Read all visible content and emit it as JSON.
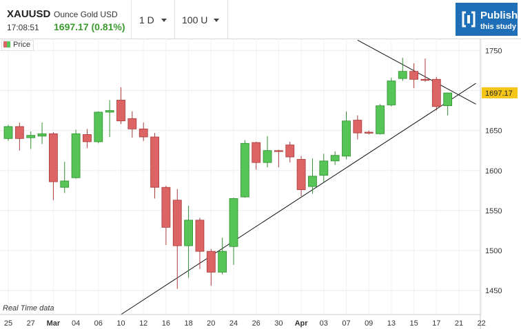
{
  "header": {
    "symbol": "XAUUSD",
    "description": "Ounce Gold USD",
    "time": "17:08:51",
    "price_change": "1697.17 (0.81%)",
    "interval_label": "1 D",
    "bars_label": "100 U",
    "publish_line1": "Publish",
    "publish_line2": "this study"
  },
  "legend_label": "Price",
  "footer_note": "Real Time data",
  "colors": {
    "up": "#56c456",
    "down": "#dc6464",
    "price_positive": "#3a9a2e",
    "publish_bg": "#1e6fb8",
    "last_price_label": "#f5c518"
  },
  "icons": {
    "publish": "bracket-book-icon",
    "dropdown": "caret-down-icon"
  },
  "chart_data": {
    "type": "candlestick",
    "y_ticks": [
      1450,
      1500,
      1550,
      1600,
      1650,
      1700,
      1750
    ],
    "y_tick_labels": [
      "1450",
      "1500",
      "1550",
      "1600",
      "1650",
      "1700",
      "1750"
    ],
    "ylim": [
      1420,
      1765
    ],
    "x_labels": [
      "25",
      "27",
      "Mar",
      "04",
      "06",
      "10",
      "12",
      "16",
      "18",
      "20",
      "24",
      "26",
      "30",
      "Apr",
      "03",
      "07",
      "09",
      "13",
      "15",
      "17",
      "21",
      "22"
    ],
    "last_price": "1697.17",
    "grid": true,
    "legend_position": "top-left",
    "candles": [
      {
        "o": 1640,
        "c": 1655,
        "h": 1657,
        "l": 1637
      },
      {
        "o": 1655,
        "c": 1640,
        "h": 1660,
        "l": 1625
      },
      {
        "o": 1641,
        "c": 1644,
        "h": 1649,
        "l": 1627
      },
      {
        "o": 1643,
        "c": 1646,
        "h": 1660,
        "l": 1633
      },
      {
        "o": 1646,
        "c": 1586,
        "h": 1648,
        "l": 1563
      },
      {
        "o": 1579,
        "c": 1587,
        "h": 1611,
        "l": 1572
      },
      {
        "o": 1591,
        "c": 1646,
        "h": 1651,
        "l": 1590
      },
      {
        "o": 1645,
        "c": 1636,
        "h": 1652,
        "l": 1628
      },
      {
        "o": 1636,
        "c": 1673,
        "h": 1674,
        "l": 1634
      },
      {
        "o": 1673,
        "c": 1675,
        "h": 1688,
        "l": 1642
      },
      {
        "o": 1688,
        "c": 1662,
        "h": 1704,
        "l": 1658
      },
      {
        "o": 1665,
        "c": 1652,
        "h": 1674,
        "l": 1641
      },
      {
        "o": 1652,
        "c": 1642,
        "h": 1660,
        "l": 1637
      },
      {
        "o": 1642,
        "c": 1579,
        "h": 1647,
        "l": 1565
      },
      {
        "o": 1579,
        "c": 1529,
        "h": 1581,
        "l": 1507
      },
      {
        "o": 1563,
        "c": 1506,
        "h": 1577,
        "l": 1452
      },
      {
        "o": 1506,
        "c": 1538,
        "h": 1556,
        "l": 1466
      },
      {
        "o": 1538,
        "c": 1499,
        "h": 1541,
        "l": 1477
      },
      {
        "o": 1499,
        "c": 1473,
        "h": 1502,
        "l": 1456
      },
      {
        "o": 1473,
        "c": 1499,
        "h": 1516,
        "l": 1470
      },
      {
        "o": 1505,
        "c": 1565,
        "h": 1566,
        "l": 1482
      },
      {
        "o": 1567,
        "c": 1634,
        "h": 1638,
        "l": 1566
      },
      {
        "o": 1635,
        "c": 1610,
        "h": 1636,
        "l": 1601
      },
      {
        "o": 1610,
        "c": 1625,
        "h": 1643,
        "l": 1604
      },
      {
        "o": 1625,
        "c": 1624,
        "h": 1626,
        "l": 1604
      },
      {
        "o": 1632,
        "c": 1617,
        "h": 1636,
        "l": 1610
      },
      {
        "o": 1614,
        "c": 1576,
        "h": 1618,
        "l": 1568
      },
      {
        "o": 1580,
        "c": 1593,
        "h": 1615,
        "l": 1571
      },
      {
        "o": 1594,
        "c": 1612,
        "h": 1621,
        "l": 1585
      },
      {
        "o": 1612,
        "c": 1619,
        "h": 1624,
        "l": 1607
      },
      {
        "o": 1618,
        "c": 1662,
        "h": 1674,
        "l": 1614
      },
      {
        "o": 1663,
        "c": 1647,
        "h": 1669,
        "l": 1639
      },
      {
        "o": 1648,
        "c": 1647,
        "h": 1650,
        "l": 1645
      },
      {
        "o": 1646,
        "c": 1681,
        "h": 1683,
        "l": 1645
      },
      {
        "o": 1682,
        "c": 1712,
        "h": 1716,
        "l": 1680
      },
      {
        "o": 1715,
        "c": 1724,
        "h": 1741,
        "l": 1712
      },
      {
        "o": 1724,
        "c": 1714,
        "h": 1734,
        "l": 1703
      },
      {
        "o": 1714,
        "c": 1713,
        "h": 1740,
        "l": 1711
      },
      {
        "o": 1714,
        "c": 1680,
        "h": 1717,
        "l": 1675
      },
      {
        "o": 1681,
        "c": 1697,
        "h": 1697,
        "l": 1669
      }
    ],
    "trendlines": [
      {
        "from_index": 10,
        "from_price": 1420,
        "to_index": 41.5,
        "to_price": 1709
      },
      {
        "from_index": 31,
        "from_price": 1763,
        "to_index": 41.5,
        "to_price": 1683
      }
    ]
  }
}
